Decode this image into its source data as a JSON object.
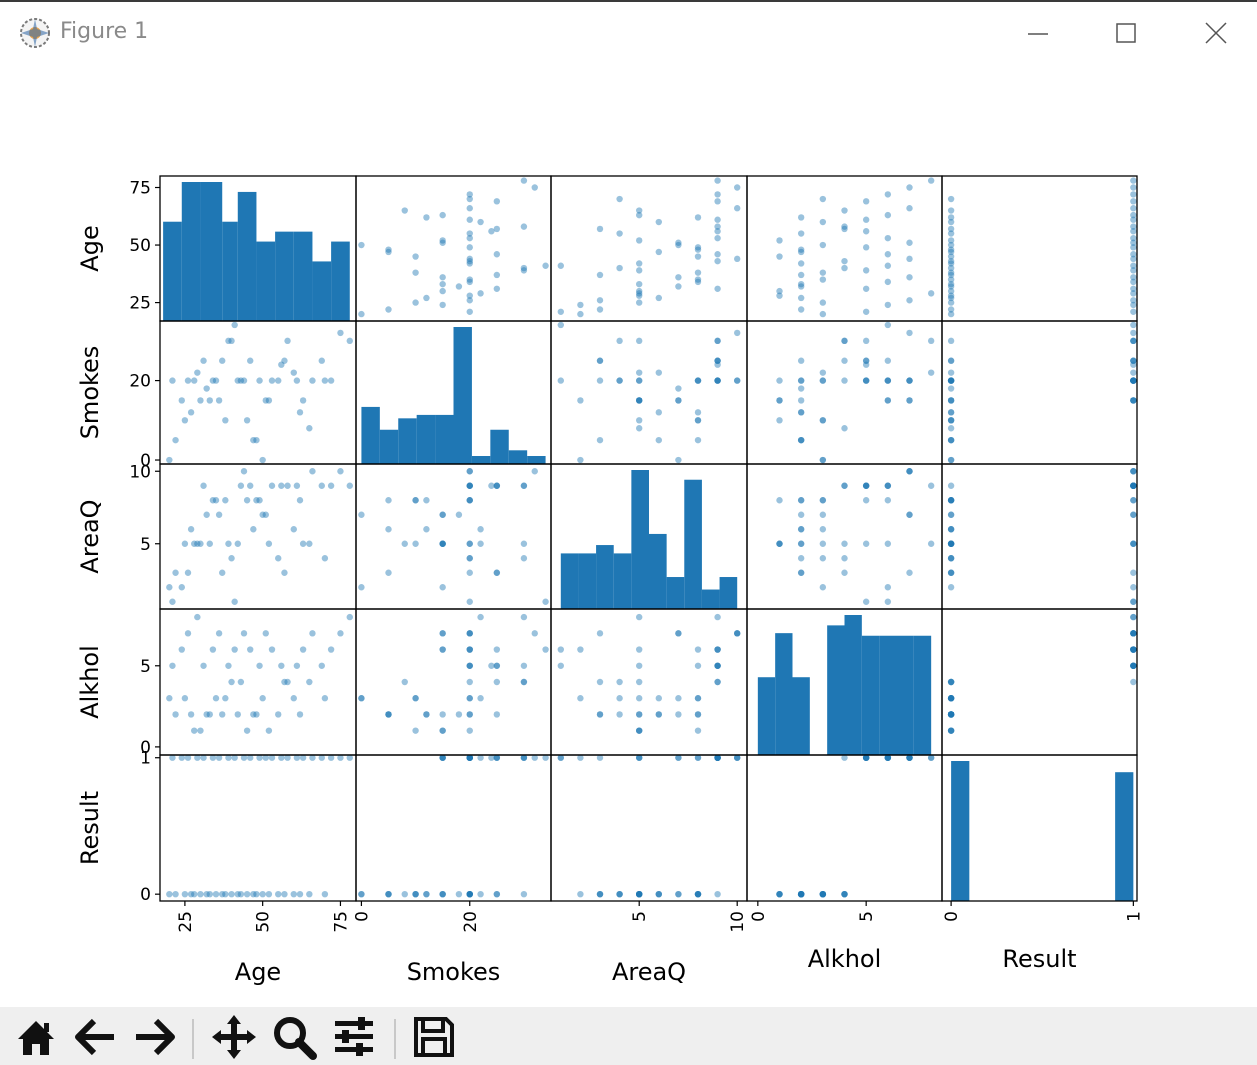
{
  "window": {
    "title": "Figure 1",
    "icons": {
      "app": "matplotlib-logo-icon",
      "minimize": "minimize-icon",
      "maximize": "maximize-icon",
      "close": "close-icon"
    }
  },
  "toolbar": {
    "buttons": [
      {
        "name": "home-button",
        "icon": "home-icon"
      },
      {
        "name": "back-button",
        "icon": "arrow-left-icon"
      },
      {
        "name": "forward-button",
        "icon": "arrow-right-icon"
      },
      {
        "name": "pan-button",
        "icon": "move-icon"
      },
      {
        "name": "zoom-button",
        "icon": "magnifier-icon"
      },
      {
        "name": "subplots-button",
        "icon": "sliders-icon"
      },
      {
        "name": "save-button",
        "icon": "floppy-disk-icon"
      }
    ]
  },
  "colors": {
    "accent": "#1f77b4",
    "point": "#1f77b4",
    "axes": "#000000"
  },
  "chart_data": {
    "type": "scatter_matrix",
    "variables": [
      "Age",
      "Smokes",
      "AreaQ",
      "Alkhol",
      "Result"
    ],
    "ranges": {
      "Age": [
        17,
        80
      ],
      "Smokes": [
        -1,
        35
      ],
      "AreaQ": [
        0.5,
        10.5
      ],
      "Alkhol": [
        -0.5,
        8.5
      ],
      "Result": [
        -0.05,
        1.02
      ]
    },
    "ticks": {
      "Age": [
        {
          "v": 25,
          "t": "25"
        },
        {
          "v": 50,
          "t": "50"
        },
        {
          "v": 75,
          "t": "75"
        }
      ],
      "Smokes": [
        {
          "v": 0,
          "t": "0"
        },
        {
          "v": 20,
          "t": "20"
        }
      ],
      "AreaQ": [
        {
          "v": 5,
          "t": "5"
        },
        {
          "v": 10,
          "t": "10"
        }
      ],
      "Alkhol": [
        {
          "v": 0,
          "t": "0"
        },
        {
          "v": 5,
          "t": "5"
        }
      ],
      "Result": [
        {
          "v": 0,
          "t": "0"
        },
        {
          "v": 1,
          "t": "1"
        }
      ]
    },
    "histograms": {
      "Age": {
        "edges": [
          18,
          24,
          30,
          37,
          42,
          48,
          54,
          60,
          66,
          72,
          78
        ],
        "counts": [
          5,
          7,
          7,
          5,
          6.5,
          4,
          4.5,
          4.5,
          3,
          4
        ]
      },
      "Smokes": {
        "edges": [
          0,
          3.4,
          6.8,
          10.2,
          13.6,
          17,
          20.4,
          23.8,
          27.2,
          30.6,
          34
        ],
        "counts": [
          5,
          3,
          4,
          4.3,
          4.3,
          12,
          0.7,
          3,
          1.2,
          0.7
        ]
      },
      "AreaQ": {
        "edges": [
          1,
          1.9,
          2.8,
          3.7,
          4.6,
          5.5,
          6.4,
          7.3,
          8.2,
          9.1,
          10
        ],
        "counts": [
          4,
          4,
          4.6,
          4,
          10,
          5.4,
          2.3,
          9.3,
          1.4,
          2.3
        ]
      },
      "Alkhol": {
        "edges": [
          0,
          0.8,
          1.6,
          2.4,
          3.2,
          4,
          4.8,
          5.6,
          6.4,
          7.2,
          8
        ],
        "counts": [
          3,
          4.7,
          3,
          0,
          5,
          5.4,
          4.6,
          4.6,
          4.6,
          4.6
        ]
      },
      "Result": {
        "edges": [
          0,
          0.1,
          0.2,
          0.3,
          0.4,
          0.5,
          0.6,
          0.7,
          0.8,
          0.9,
          1
        ],
        "counts": [
          25,
          0,
          0,
          0,
          0,
          0,
          0,
          0,
          0,
          23
        ]
      }
    },
    "rows": [
      [
        20,
        0,
        2,
        3,
        0
      ],
      [
        22,
        5,
        3,
        2,
        0
      ],
      [
        25,
        10,
        5,
        3,
        0
      ],
      [
        27,
        12,
        6,
        2,
        0
      ],
      [
        30,
        15,
        5,
        1,
        0
      ],
      [
        32,
        18,
        7,
        2,
        0
      ],
      [
        35,
        20,
        8,
        3,
        0
      ],
      [
        37,
        25,
        3,
        2,
        0
      ],
      [
        40,
        30,
        4,
        4,
        0
      ],
      [
        42,
        20,
        5,
        2,
        0
      ],
      [
        45,
        10,
        8,
        1,
        0
      ],
      [
        47,
        5,
        6,
        2,
        0
      ],
      [
        50,
        0,
        7,
        3,
        0
      ],
      [
        52,
        15,
        5,
        1,
        0
      ],
      [
        55,
        20,
        4,
        2,
        0
      ],
      [
        57,
        25,
        3,
        4,
        0
      ],
      [
        60,
        22,
        6,
        3,
        0
      ],
      [
        62,
        12,
        8,
        2,
        0
      ],
      [
        65,
        8,
        5,
        4,
        0
      ],
      [
        70,
        20,
        4,
        3,
        0
      ],
      [
        28,
        20,
        5,
        1,
        0
      ],
      [
        33,
        15,
        5,
        2,
        0
      ],
      [
        38,
        10,
        8,
        3,
        0
      ],
      [
        43,
        20,
        9,
        4,
        0
      ],
      [
        48,
        5,
        8,
        2,
        0
      ],
      [
        21,
        20,
        1,
        5,
        1
      ],
      [
        24,
        15,
        2,
        6,
        1
      ],
      [
        26,
        20,
        3,
        7,
        1
      ],
      [
        29,
        22,
        5,
        8,
        1
      ],
      [
        31,
        25,
        9,
        5,
        1
      ],
      [
        34,
        20,
        8,
        6,
        1
      ],
      [
        36,
        15,
        7,
        7,
        1
      ],
      [
        39,
        30,
        5,
        5,
        1
      ],
      [
        41,
        34,
        1,
        6,
        1
      ],
      [
        44,
        20,
        10,
        7,
        1
      ],
      [
        46,
        25,
        9,
        6,
        1
      ],
      [
        49,
        20,
        8,
        5,
        1
      ],
      [
        51,
        15,
        7,
        7,
        1
      ],
      [
        53,
        20,
        9,
        6,
        1
      ],
      [
        56,
        24,
        9,
        5,
        1
      ],
      [
        58,
        30,
        9,
        4,
        1
      ],
      [
        61,
        20,
        9,
        5,
        1
      ],
      [
        63,
        15,
        5,
        6,
        1
      ],
      [
        66,
        20,
        10,
        7,
        1
      ],
      [
        69,
        25,
        9,
        5,
        1
      ],
      [
        72,
        20,
        9,
        6,
        1
      ],
      [
        75,
        32,
        10,
        7,
        1
      ],
      [
        78,
        30,
        9,
        8,
        1
      ]
    ],
    "xlabels": [
      "Age",
      "Smokes",
      "AreaQ",
      "Alkhol",
      "Result"
    ],
    "ylabels": [
      "Age",
      "Smokes",
      "AreaQ",
      "Alkhol",
      "Result"
    ],
    "grid": false,
    "legend": "none"
  }
}
